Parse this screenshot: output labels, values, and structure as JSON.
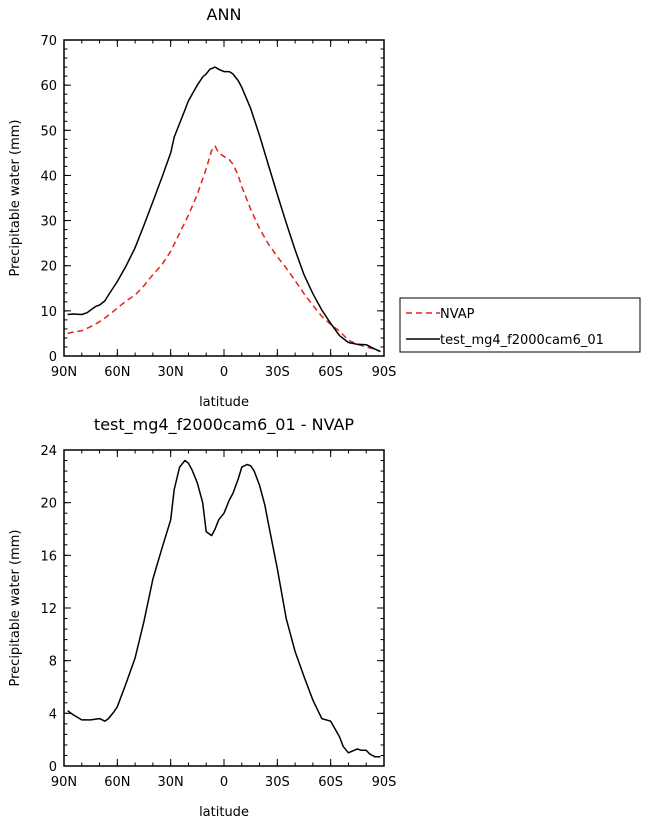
{
  "chart_data": [
    {
      "type": "line",
      "title": "ANN",
      "xlabel": "latitude",
      "ylabel": "Precipitable water (mm)",
      "xlim": [
        -90,
        90
      ],
      "ylim": [
        0,
        70
      ],
      "x_tick_values": [
        -90,
        -60,
        -30,
        0,
        30,
        60,
        90
      ],
      "x_tick_labels": [
        "90N",
        "60N",
        "30N",
        "0",
        "30S",
        "60S",
        "90S"
      ],
      "y_ticks": [
        0,
        10,
        20,
        30,
        40,
        50,
        60,
        70
      ],
      "grid": false,
      "legend_position": "right",
      "series": [
        {
          "name": "NVAP",
          "color": "#e8201e",
          "dash": "dashed",
          "x": [
            -88,
            -85,
            -80,
            -75,
            -70,
            -65,
            -60,
            -55,
            -50,
            -45,
            -40,
            -35,
            -30,
            -25,
            -20,
            -15,
            -10,
            -7,
            -5,
            -3,
            0,
            3,
            5,
            8,
            10,
            15,
            20,
            25,
            30,
            35,
            40,
            45,
            50,
            55,
            60,
            65,
            70,
            75,
            80,
            85,
            88
          ],
          "y": [
            5,
            5.3,
            5.6,
            6.5,
            7.6,
            9.0,
            10.6,
            12.2,
            13.5,
            15.6,
            18.0,
            20.2,
            23.2,
            27.2,
            31.2,
            35.8,
            41.5,
            45.5,
            46.5,
            45.0,
            44.2,
            43.5,
            42.5,
            40.0,
            37.5,
            32.5,
            28.2,
            24.8,
            22.0,
            19.5,
            16.7,
            13.8,
            11.2,
            8.8,
            7.0,
            5.5,
            3.5,
            2.6,
            2.0,
            1.5,
            1.0
          ]
        },
        {
          "name": "test_mg4_f2000cam6_01",
          "color": "#000000",
          "dash": "solid",
          "x": [
            -88,
            -85,
            -80,
            -77,
            -75,
            -72,
            -70,
            -67,
            -65,
            -60,
            -55,
            -50,
            -45,
            -40,
            -35,
            -30,
            -28,
            -25,
            -22,
            -20,
            -15,
            -12,
            -10,
            -8,
            -5,
            -3,
            0,
            3,
            5,
            8,
            10,
            15,
            20,
            25,
            30,
            35,
            40,
            45,
            50,
            55,
            60,
            65,
            70,
            75,
            80,
            85,
            88
          ],
          "y": [
            9.2,
            9.3,
            9.2,
            9.6,
            10.2,
            11.0,
            11.3,
            12.2,
            13.5,
            16.5,
            20.0,
            24.0,
            29.0,
            34.2,
            39.5,
            45.0,
            48.5,
            51.5,
            54.5,
            56.5,
            60.0,
            61.8,
            62.5,
            63.5,
            64.0,
            63.5,
            63.0,
            63.0,
            62.5,
            61.0,
            59.5,
            54.8,
            48.8,
            42.3,
            35.8,
            29.5,
            23.5,
            18.0,
            13.8,
            10.2,
            7.2,
            4.5,
            3.0,
            2.6,
            2.5,
            1.5,
            1.0
          ]
        }
      ]
    },
    {
      "type": "line",
      "title": "test_mg4_f2000cam6_01 - NVAP",
      "xlabel": "latitude",
      "ylabel": "Precipitable water (mm)",
      "xlim": [
        -90,
        90
      ],
      "ylim": [
        0,
        24
      ],
      "x_tick_values": [
        -90,
        -60,
        -30,
        0,
        30,
        60,
        90
      ],
      "x_tick_labels": [
        "90N",
        "60N",
        "30N",
        "0",
        "30S",
        "60S",
        "90S"
      ],
      "y_ticks": [
        0,
        4,
        8,
        12,
        16,
        20,
        24
      ],
      "grid": false,
      "series": [
        {
          "color": "#000000",
          "dash": "solid",
          "x": [
            -88,
            -85,
            -80,
            -75,
            -70,
            -67,
            -65,
            -62,
            -60,
            -55,
            -50,
            -45,
            -40,
            -35,
            -30,
            -28,
            -25,
            -22,
            -20,
            -18,
            -15,
            -12,
            -10,
            -7,
            -5,
            -3,
            0,
            3,
            5,
            8,
            10,
            13,
            15,
            17,
            20,
            23,
            25,
            30,
            35,
            40,
            45,
            50,
            55,
            60,
            65,
            67,
            70,
            75,
            77,
            80,
            82,
            85,
            88
          ],
          "y": [
            4.2,
            3.9,
            3.5,
            3.5,
            3.6,
            3.4,
            3.6,
            4.1,
            4.5,
            6.3,
            8.2,
            11.0,
            14.2,
            16.5,
            18.7,
            21.0,
            22.7,
            23.2,
            23.0,
            22.5,
            21.5,
            20.0,
            17.8,
            17.5,
            18.0,
            18.7,
            19.2,
            20.2,
            20.7,
            21.8,
            22.7,
            22.9,
            22.8,
            22.4,
            21.3,
            19.8,
            18.4,
            15.0,
            11.2,
            8.7,
            6.8,
            5.0,
            3.6,
            3.4,
            2.2,
            1.5,
            1.0,
            1.3,
            1.2,
            1.2,
            0.9,
            0.7,
            0.7
          ]
        }
      ]
    }
  ]
}
